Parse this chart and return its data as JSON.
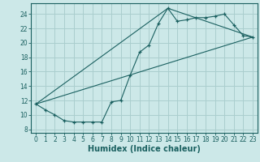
{
  "xlabel": "Humidex (Indice chaleur)",
  "bg_color": "#cce8e8",
  "grid_color": "#aacece",
  "line_color": "#1a6060",
  "xlim": [
    -0.5,
    23.5
  ],
  "ylim": [
    7.5,
    25.5
  ],
  "xticks": [
    0,
    1,
    2,
    3,
    4,
    5,
    6,
    7,
    8,
    9,
    10,
    11,
    12,
    13,
    14,
    15,
    16,
    17,
    18,
    19,
    20,
    21,
    22,
    23
  ],
  "yticks": [
    8,
    10,
    12,
    14,
    16,
    18,
    20,
    22,
    24
  ],
  "line1_x": [
    0,
    1,
    2,
    3,
    4,
    5,
    6,
    7,
    8,
    9,
    10,
    11,
    12,
    13,
    14,
    15,
    16,
    17,
    18,
    19,
    20,
    21,
    22,
    23
  ],
  "line1_y": [
    11.5,
    10.7,
    10.0,
    9.2,
    9.0,
    9.0,
    9.0,
    9.0,
    11.8,
    12.0,
    15.5,
    18.7,
    19.7,
    22.7,
    24.8,
    23.0,
    23.2,
    23.5,
    23.5,
    23.7,
    24.0,
    22.5,
    21.0,
    20.8
  ],
  "line2_x": [
    0,
    23
  ],
  "line2_y": [
    11.5,
    20.8
  ],
  "line3_x": [
    0,
    14,
    23
  ],
  "line3_y": [
    11.5,
    24.8,
    20.8
  ],
  "tick_fontsize": 5.5,
  "xlabel_fontsize": 7.0
}
